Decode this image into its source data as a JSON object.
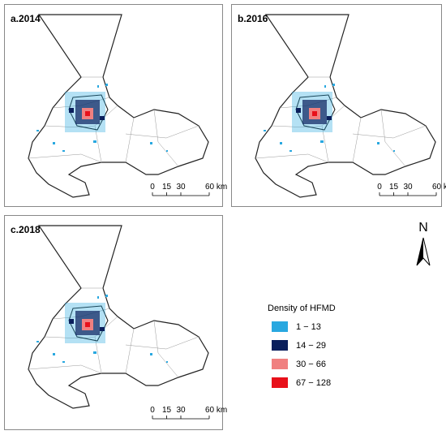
{
  "panels": [
    {
      "label": "a.2014"
    },
    {
      "label": "b.2016"
    },
    {
      "label": "c.2018"
    }
  ],
  "scale_bar": [
    0,
    15,
    30,
    {
      "value": 60,
      "label": "60 km"
    }
  ],
  "north": "N",
  "legend": {
    "title": "Density of HFMD",
    "items": [
      {
        "label": "1 − 13",
        "color": "#29a8e0"
      },
      {
        "label": "14 − 29",
        "color": "#0a1f5c"
      },
      {
        "label": "30 − 66",
        "color": "#f08080"
      },
      {
        "label": "67 − 128",
        "color": "#e8101a"
      }
    ]
  }
}
